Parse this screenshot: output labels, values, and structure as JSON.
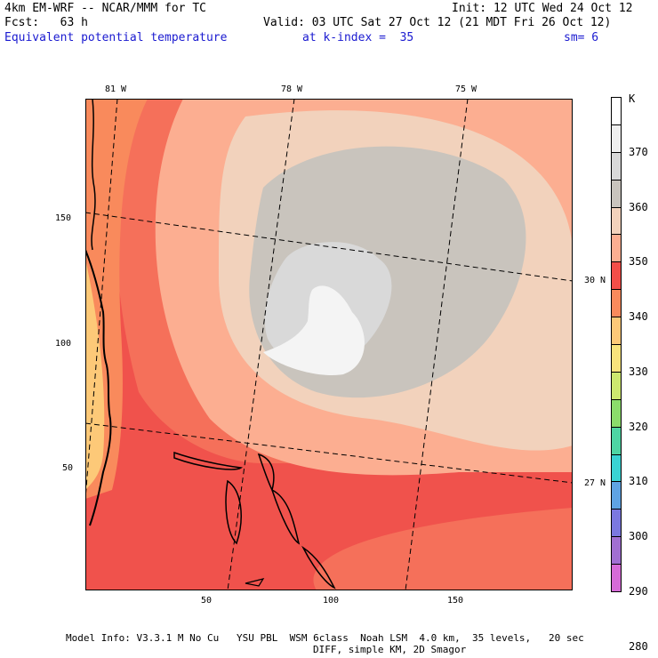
{
  "header": {
    "line1_left": "4km EM-WRF -- NCAR/MMM for TC",
    "line1_right": "Init: 12 UTC Wed 24 Oct 12",
    "line2_left": "Fcst:   63 h",
    "line2_right": "Valid: 03 UTC Sat 27 Oct 12 (21 MDT Fri 26 Oct 12)",
    "field_name": "Equivalent potential temperature",
    "k_index": "at k-index =  35",
    "smoothing": "sm= 6"
  },
  "map": {
    "lon_labels": [
      "81 W",
      "78 W",
      "75 W"
    ],
    "lat_labels": [
      "30 N",
      "27 N"
    ],
    "x_ticks": [
      "50",
      "100",
      "150"
    ],
    "y_ticks": [
      "150",
      "100",
      "50"
    ]
  },
  "colorbar": {
    "unit": "K",
    "labels": [
      "370",
      "360",
      "350",
      "340",
      "330",
      "320",
      "310",
      "300",
      "290",
      "280"
    ],
    "colors": [
      "#ffffff",
      "#f0f0f0",
      "#d9d9d9",
      "#c9c4bd",
      "#f2d2bc",
      "#fcae91",
      "#f24e48",
      "#f98a5c",
      "#fdc978",
      "#f8e37c",
      "#cde86f",
      "#8bdc6b",
      "#4ed5a3",
      "#39d3d3",
      "#5fa3e3",
      "#7b78e0",
      "#a16fd2",
      "#d66bd7"
    ]
  },
  "footer": {
    "line1": "Model Info: V3.3.1 M No Cu   YSU PBL  WSM 6class  Noah LSM  4.0 km,  35 levels,   20 sec",
    "line2": "DIFF, simple KM, 2D Smagor"
  }
}
